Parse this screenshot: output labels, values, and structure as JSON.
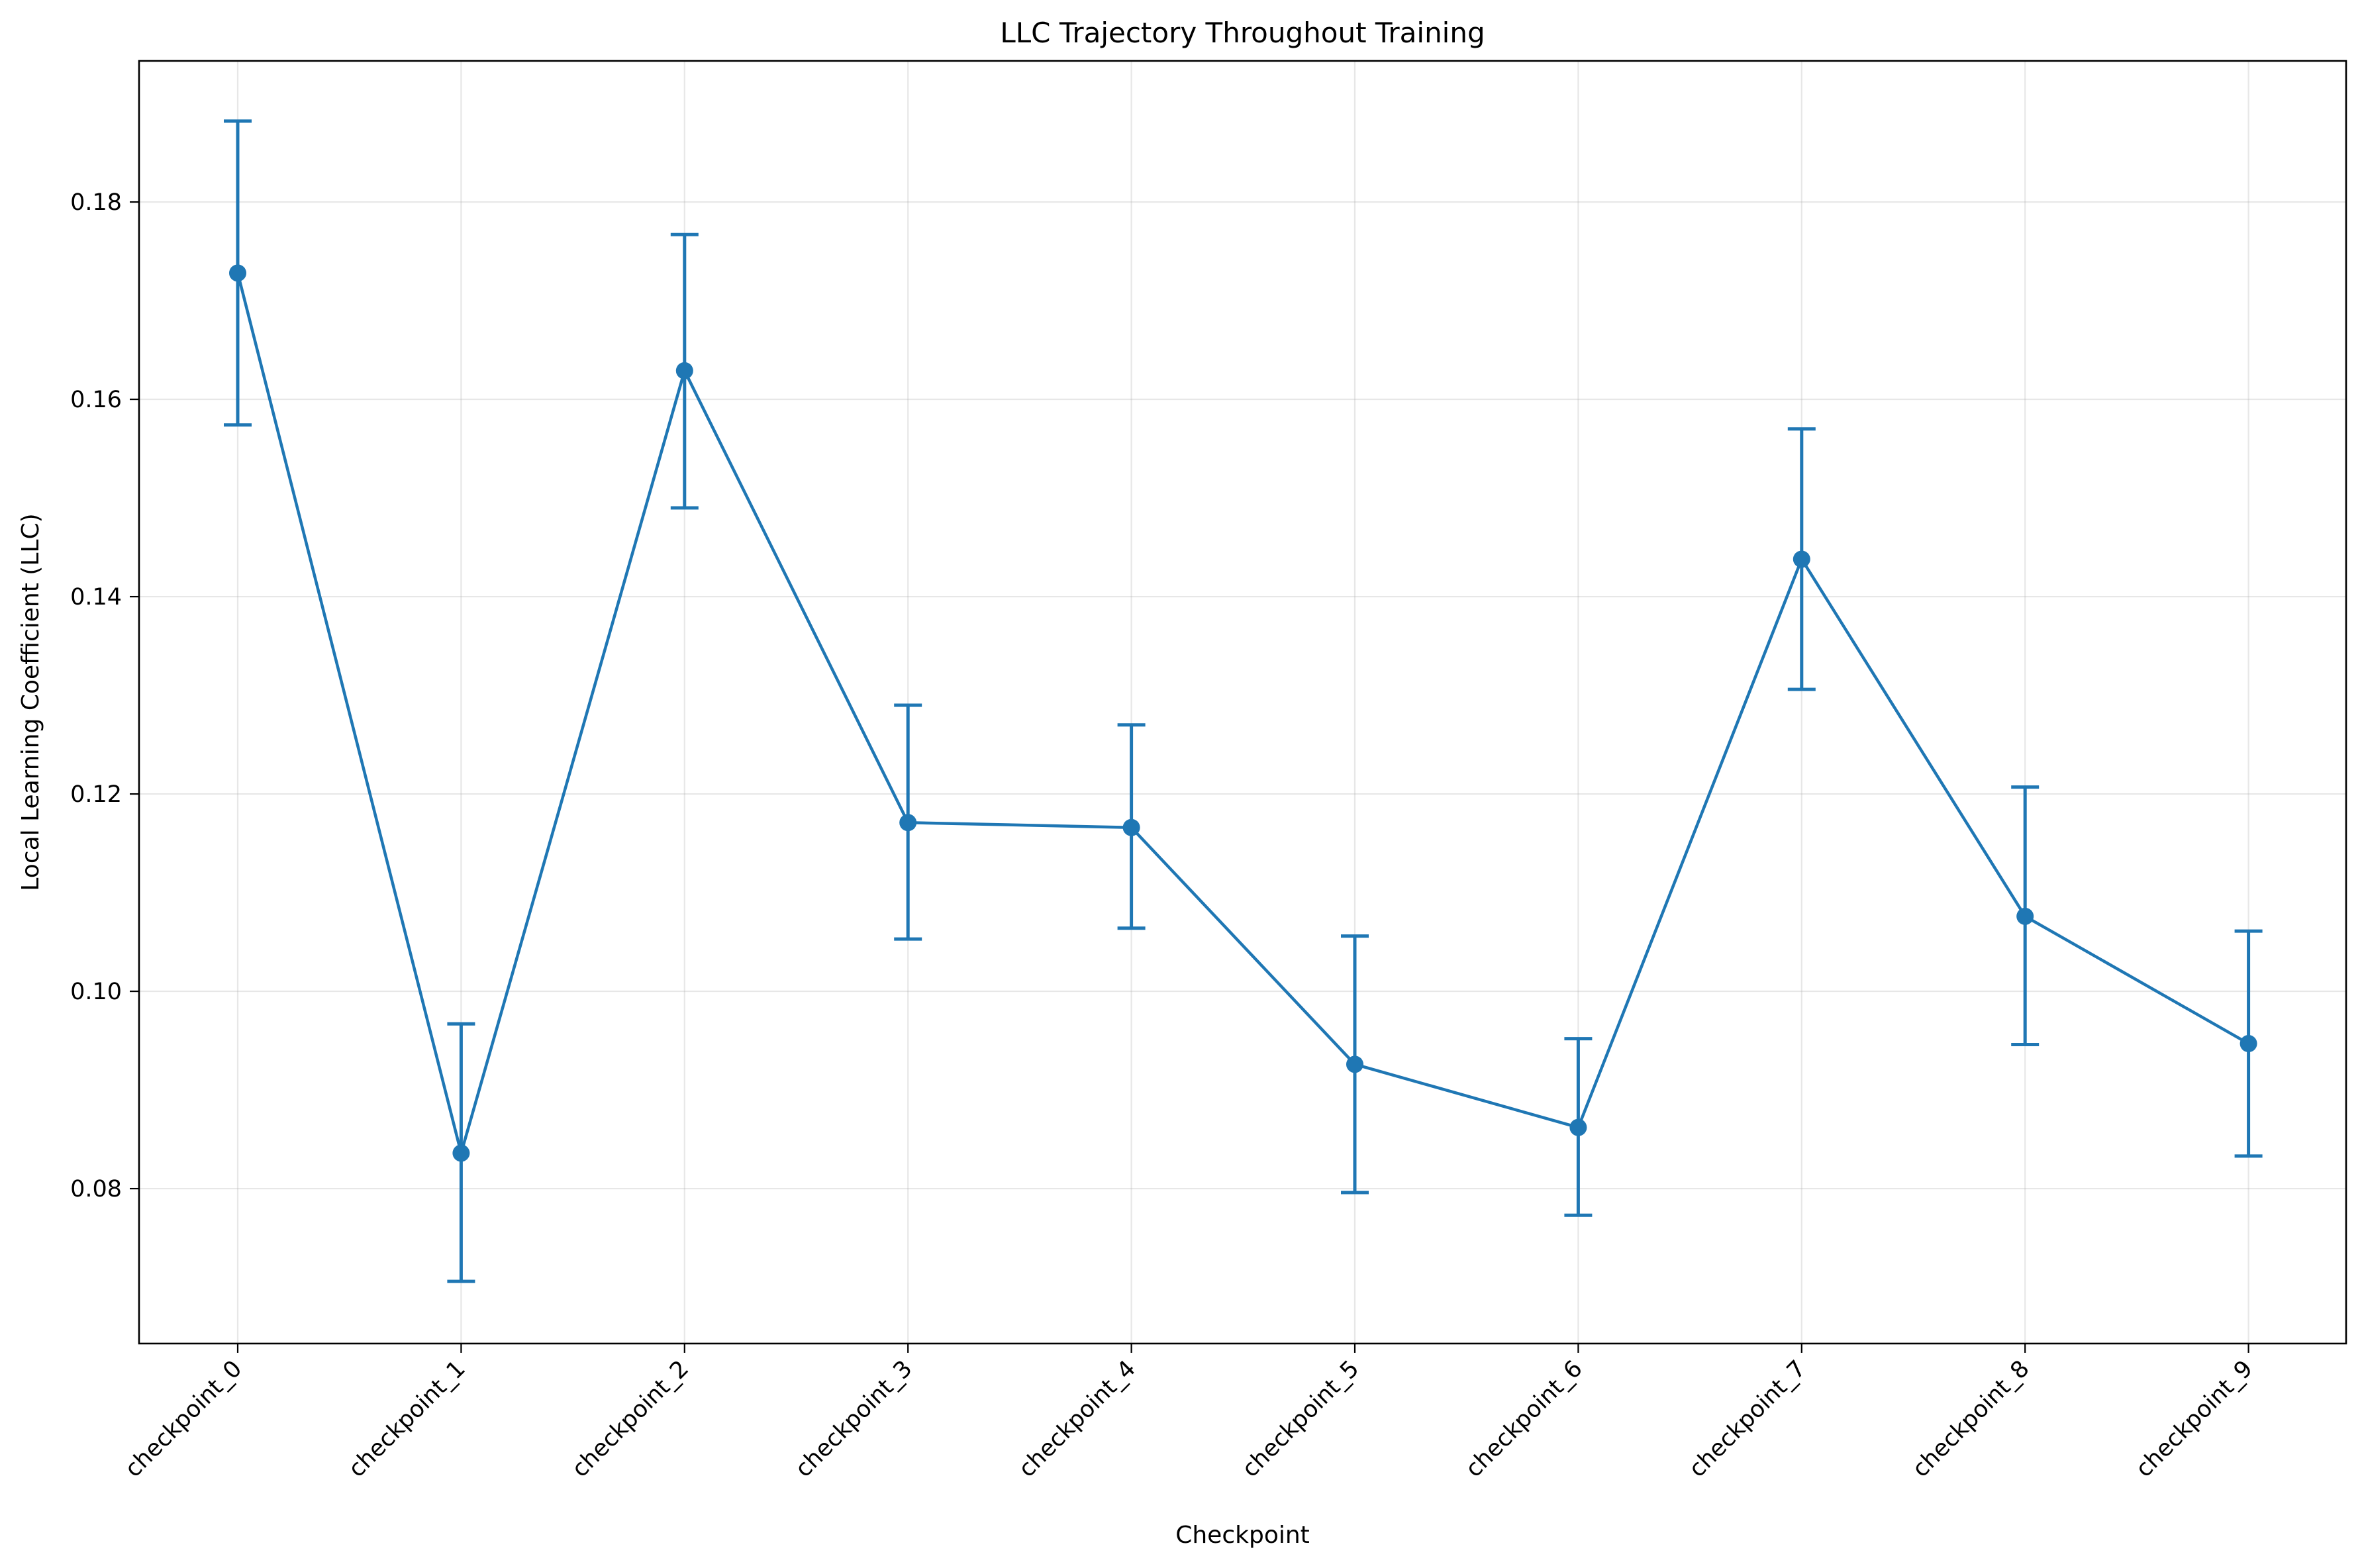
{
  "chart_data": {
    "type": "line",
    "title": "LLC Trajectory Throughout Training",
    "xlabel": "Checkpoint",
    "ylabel": "Local Learning Coefficient (LLC)",
    "categories": [
      "checkpoint_0",
      "checkpoint_1",
      "checkpoint_2",
      "checkpoint_3",
      "checkpoint_4",
      "checkpoint_5",
      "checkpoint_6",
      "checkpoint_7",
      "checkpoint_8",
      "checkpoint_9"
    ],
    "series": [
      {
        "values": [
          0.1728,
          0.0836,
          0.1629,
          0.1171,
          0.1166,
          0.0926,
          0.0862,
          0.1438,
          0.1076,
          0.0947
        ],
        "error_low": [
          0.1574,
          0.0706,
          0.149,
          0.1053,
          0.1064,
          0.0796,
          0.0773,
          0.1306,
          0.0946,
          0.0833
        ],
        "error_high": [
          0.1882,
          0.0967,
          0.1767,
          0.129,
          0.127,
          0.1056,
          0.0952,
          0.157,
          0.1207,
          0.1061
        ],
        "color": "#1f77b4"
      }
    ],
    "yticks": [
      "0.08",
      "0.10",
      "0.12",
      "0.14",
      "0.16",
      "0.18"
    ],
    "ylim": [
      0.0643,
      0.1943
    ],
    "grid": true,
    "x_tick_rotation": 45
  }
}
